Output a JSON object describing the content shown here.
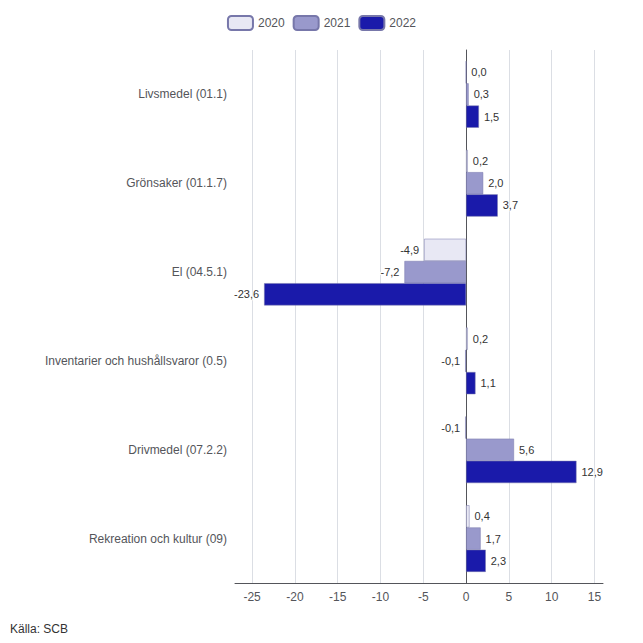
{
  "chart_data": {
    "type": "bar",
    "orientation": "horizontal",
    "categories": [
      "Livsmedel (01.1)",
      "Grönsaker (01.1.7)",
      "El (04.5.1)",
      "Inventarier och hushållsvaror (0.5)",
      "Drivmedel (07.2.2)",
      "Rekreation och kultur (09)"
    ],
    "series": [
      {
        "name": "2020",
        "color": "#e8e8f4",
        "values": [
          0.0,
          0.2,
          -4.9,
          0.2,
          -0.1,
          0.4
        ],
        "value_labels": [
          "0,0",
          "0,2",
          "-4,9",
          "0,2",
          "-0,1",
          "0,4"
        ]
      },
      {
        "name": "2021",
        "color": "#9999cc",
        "values": [
          0.3,
          2.0,
          -7.2,
          -0.1,
          5.6,
          1.7
        ],
        "value_labels": [
          "0,3",
          "2,0",
          "-7,2",
          "-0,1",
          "5,6",
          "1,7"
        ]
      },
      {
        "name": "2022",
        "color": "#1a1aaa",
        "values": [
          1.5,
          3.7,
          -23.6,
          1.1,
          12.9,
          2.3
        ],
        "value_labels": [
          "1,5",
          "3,7",
          "-23,6",
          "1,1",
          "12,9",
          "2,3"
        ]
      }
    ],
    "xlim": [
      -27,
      16
    ],
    "xticks": [
      -25,
      -20,
      -15,
      -10,
      -5,
      0,
      5,
      10,
      15
    ],
    "grid": true,
    "legend": "top",
    "data_labels": true,
    "annotations": [
      "Källa: SCB"
    ]
  }
}
